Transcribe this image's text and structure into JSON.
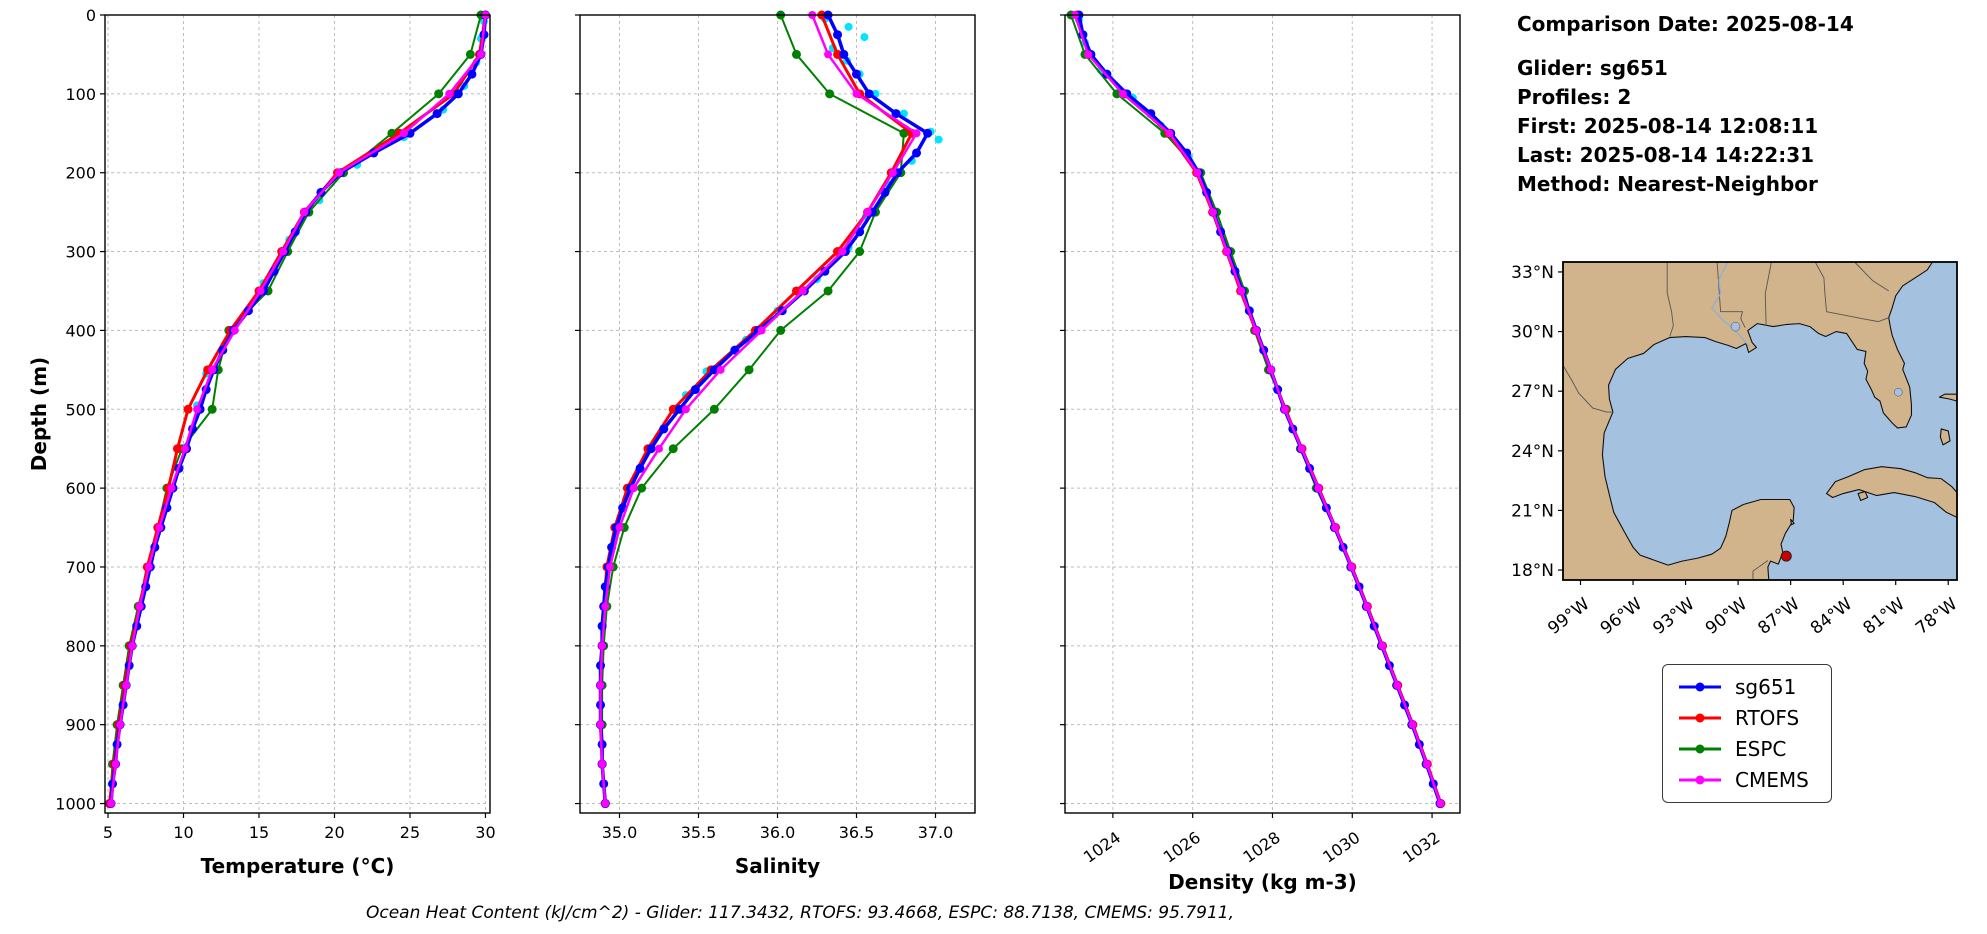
{
  "info_panel": {
    "comparison_date": "Comparison Date: 2025-08-14",
    "glider": "Glider: sg651",
    "profiles": "Profiles: 2",
    "first": "First: 2025-08-14 12:08:11",
    "last": "Last: 2025-08-14 14:22:31",
    "method": "Method: Nearest-Neighbor"
  },
  "caption": "Ocean Heat Content (kJ/cm^2) - Glider: 117.3432,  RTOFS: 93.4668,  ESPC: 88.7138,  CMEMS: 95.7911,",
  "legend": {
    "entries": [
      {
        "label": "sg651",
        "color": "#0000ff"
      },
      {
        "label": "RTOFS",
        "color": "#ff0000"
      },
      {
        "label": "ESPC",
        "color": "#008000"
      },
      {
        "label": "CMEMS",
        "color": "#ff00ff"
      }
    ]
  },
  "map": {
    "extent": {
      "lon": [
        -100,
        -77.5
      ],
      "lat": [
        17.5,
        33.5
      ]
    },
    "lon_ticks": [
      -99,
      -96,
      -93,
      -90,
      -87,
      -84,
      -81,
      -78
    ],
    "lon_tick_labels": [
      "99°W",
      "96°W",
      "93°W",
      "90°W",
      "87°W",
      "84°W",
      "81°W",
      "78°W"
    ],
    "lat_ticks": [
      18,
      21,
      24,
      27,
      30,
      33
    ],
    "lat_tick_labels": [
      "18°N",
      "21°N",
      "24°N",
      "27°N",
      "30°N",
      "33°N"
    ],
    "marker": {
      "lon": -87.25,
      "lat": 18.7,
      "color": "#cc0000"
    },
    "land_color": "#d2b48c",
    "ocean_color": "#a4c2e0"
  },
  "chart_data": [
    {
      "type": "line",
      "xlabel": "Temperature (°C)",
      "ylabel": "Depth (m)",
      "xlim": [
        4.8,
        30.3
      ],
      "ylim": [
        0,
        1012
      ],
      "xticks": [
        5,
        10,
        15,
        20,
        25,
        30
      ],
      "xtick_labels": [
        "5",
        "10",
        "15",
        "20",
        "25",
        "30"
      ],
      "yticks": [
        0,
        100,
        200,
        300,
        400,
        500,
        600,
        700,
        800,
        900,
        1000
      ],
      "ytick_labels": [
        "0",
        "100",
        "200",
        "300",
        "400",
        "500",
        "600",
        "700",
        "800",
        "900",
        "1000"
      ],
      "series": [
        {
          "name": "ESPC",
          "color": "#008000",
          "depths": [
            0,
            50,
            100,
            150,
            200,
            250,
            300,
            350,
            400,
            450,
            500,
            550,
            600,
            650,
            700,
            750,
            800,
            850,
            900,
            950,
            1000
          ],
          "values": [
            29.7,
            29.0,
            26.9,
            23.8,
            20.6,
            18.3,
            16.9,
            15.6,
            13.0,
            12.3,
            11.9,
            9.9,
            8.9,
            8.3,
            7.7,
            7.0,
            6.4,
            6.0,
            5.6,
            5.3,
            5.1
          ]
        },
        {
          "name": "RTOFS",
          "color": "#ff0000",
          "depths": [
            0,
            50,
            100,
            150,
            200,
            250,
            300,
            350,
            400,
            450,
            500,
            550,
            600,
            650,
            700,
            750,
            800,
            850,
            900,
            950,
            1000
          ],
          "values": [
            30.0,
            29.6,
            27.9,
            24.3,
            20.2,
            18.0,
            16.5,
            15.0,
            13.1,
            11.6,
            10.3,
            9.6,
            9.0,
            8.3,
            7.6,
            7.1,
            6.5,
            6.1,
            5.7,
            5.4,
            5.1
          ]
        },
        {
          "name": "sg651",
          "color": "#0000ff",
          "depths": [
            0,
            25,
            50,
            75,
            100,
            125,
            150,
            175,
            200,
            225,
            250,
            275,
            300,
            325,
            350,
            375,
            400,
            425,
            450,
            475,
            500,
            525,
            550,
            575,
            600,
            625,
            650,
            675,
            700,
            725,
            750,
            775,
            800,
            825,
            850,
            875,
            900,
            925,
            950,
            975,
            1000
          ],
          "values": [
            30.0,
            29.9,
            29.7,
            29.1,
            28.2,
            26.8,
            25.0,
            22.6,
            20.4,
            19.1,
            18.1,
            17.4,
            16.7,
            16.0,
            15.3,
            14.3,
            13.3,
            12.6,
            12.0,
            11.5,
            11.1,
            10.6,
            10.2,
            9.7,
            9.3,
            8.9,
            8.5,
            8.1,
            7.8,
            7.5,
            7.2,
            6.9,
            6.6,
            6.4,
            6.2,
            6.0,
            5.8,
            5.6,
            5.5,
            5.3,
            5.2
          ]
        },
        {
          "name": "CMEMS",
          "color": "#ff00ff",
          "depths": [
            0,
            50,
            100,
            150,
            200,
            250,
            300,
            350,
            400,
            450,
            500,
            550,
            600,
            650,
            700,
            750,
            800,
            850,
            900,
            950,
            1000
          ],
          "values": [
            30.0,
            29.7,
            27.6,
            24.6,
            20.3,
            18.0,
            16.6,
            15.1,
            13.4,
            11.9,
            10.9,
            10.1,
            9.2,
            8.4,
            7.7,
            7.1,
            6.6,
            6.2,
            5.8,
            5.5,
            5.2
          ]
        }
      ],
      "scatter": {
        "name": "glider-raw",
        "color": "#00e5ff",
        "points": [
          [
            29.9,
            8
          ],
          [
            29.7,
            30
          ],
          [
            29.4,
            60
          ],
          [
            28.6,
            90
          ],
          [
            27.2,
            120
          ],
          [
            24.6,
            155
          ],
          [
            21.5,
            190
          ],
          [
            19.0,
            235
          ],
          [
            17.0,
            285
          ],
          [
            15.3,
            340
          ],
          [
            13.2,
            400
          ],
          [
            11.5,
            455
          ],
          [
            10.9,
            495
          ]
        ]
      }
    },
    {
      "type": "line",
      "xlabel": "Salinity",
      "xlim": [
        34.75,
        37.25
      ],
      "ylim": [
        0,
        1012
      ],
      "xticks": [
        35.0,
        35.5,
        36.0,
        36.5,
        37.0
      ],
      "xtick_labels": [
        "35.0",
        "35.5",
        "36.0",
        "36.5",
        "37.0"
      ],
      "yticks": [
        0,
        100,
        200,
        300,
        400,
        500,
        600,
        700,
        800,
        900,
        1000
      ],
      "series": [
        {
          "name": "ESPC",
          "color": "#008000",
          "depths": [
            0,
            50,
            100,
            150,
            200,
            250,
            300,
            350,
            400,
            450,
            500,
            550,
            600,
            650,
            700,
            750,
            800,
            850,
            900,
            950,
            1000
          ],
          "values": [
            36.02,
            36.12,
            36.33,
            36.8,
            36.78,
            36.62,
            36.52,
            36.32,
            36.02,
            35.82,
            35.6,
            35.34,
            35.14,
            35.03,
            34.96,
            34.92,
            34.9,
            34.89,
            34.89,
            34.89,
            34.91
          ]
        },
        {
          "name": "RTOFS",
          "color": "#ff0000",
          "depths": [
            0,
            50,
            100,
            150,
            200,
            250,
            300,
            350,
            400,
            450,
            500,
            550,
            600,
            650,
            700,
            750,
            800,
            850,
            900,
            950,
            1000
          ],
          "values": [
            36.28,
            36.38,
            36.52,
            36.85,
            36.72,
            36.57,
            36.38,
            36.12,
            35.86,
            35.58,
            35.34,
            35.18,
            35.05,
            34.97,
            34.92,
            34.9,
            34.89,
            34.88,
            34.88,
            34.89,
            34.91
          ]
        },
        {
          "name": "sg651",
          "color": "#0000ff",
          "depths": [
            0,
            25,
            50,
            75,
            100,
            125,
            150,
            175,
            200,
            225,
            250,
            275,
            300,
            325,
            350,
            375,
            400,
            425,
            450,
            475,
            500,
            525,
            550,
            575,
            600,
            625,
            650,
            675,
            700,
            725,
            750,
            775,
            800,
            825,
            850,
            875,
            900,
            925,
            950,
            975,
            1000
          ],
          "values": [
            36.32,
            36.38,
            36.42,
            36.5,
            36.58,
            36.75,
            36.95,
            36.88,
            36.76,
            36.68,
            36.6,
            36.52,
            36.43,
            36.3,
            36.17,
            36.03,
            35.88,
            35.73,
            35.6,
            35.48,
            35.38,
            35.28,
            35.2,
            35.13,
            35.07,
            35.02,
            34.98,
            34.95,
            34.93,
            34.91,
            34.9,
            34.89,
            34.89,
            34.88,
            34.88,
            34.88,
            34.88,
            34.89,
            34.89,
            34.9,
            34.91
          ]
        },
        {
          "name": "CMEMS",
          "color": "#ff00ff",
          "depths": [
            0,
            50,
            100,
            150,
            200,
            250,
            300,
            350,
            400,
            450,
            500,
            550,
            600,
            650,
            700,
            750,
            800,
            850,
            900,
            950,
            1000
          ],
          "values": [
            36.22,
            36.32,
            36.5,
            36.88,
            36.73,
            36.57,
            36.41,
            36.16,
            35.9,
            35.64,
            35.42,
            35.25,
            35.09,
            35.0,
            34.94,
            34.91,
            34.89,
            34.88,
            34.88,
            34.89,
            34.91
          ]
        }
      ],
      "scatter": {
        "name": "glider-raw",
        "color": "#00e5ff",
        "points": [
          [
            36.3,
            5
          ],
          [
            36.45,
            15
          ],
          [
            36.55,
            28
          ],
          [
            36.35,
            42
          ],
          [
            36.44,
            58
          ],
          [
            36.52,
            75
          ],
          [
            36.62,
            100
          ],
          [
            36.8,
            125
          ],
          [
            36.97,
            148
          ],
          [
            37.02,
            158
          ],
          [
            36.85,
            185
          ],
          [
            36.7,
            215
          ],
          [
            36.56,
            255
          ],
          [
            36.45,
            295
          ],
          [
            36.25,
            335
          ],
          [
            36.0,
            375
          ],
          [
            35.8,
            412
          ],
          [
            35.55,
            452
          ],
          [
            35.42,
            482
          ]
        ]
      }
    },
    {
      "type": "line",
      "xlabel": "Density (kg m-3)",
      "xlim": [
        1022.8,
        1032.7
      ],
      "ylim": [
        0,
        1012
      ],
      "xticks": [
        1024,
        1026,
        1028,
        1030,
        1032
      ],
      "xtick_labels": [
        "1024",
        "1026",
        "1028",
        "1030",
        "1032"
      ],
      "yticks": [
        0,
        100,
        200,
        300,
        400,
        500,
        600,
        700,
        800,
        900,
        1000
      ],
      "series": [
        {
          "name": "ESPC",
          "color": "#008000",
          "depths": [
            0,
            50,
            100,
            150,
            200,
            250,
            300,
            350,
            400,
            450,
            500,
            550,
            600,
            650,
            700,
            750,
            800,
            850,
            900,
            950,
            1000
          ],
          "values": [
            1022.95,
            1023.3,
            1024.1,
            1025.3,
            1026.2,
            1026.6,
            1026.95,
            1027.3,
            1027.55,
            1027.9,
            1028.35,
            1028.7,
            1029.1,
            1029.55,
            1029.96,
            1030.35,
            1030.73,
            1031.11,
            1031.49,
            1031.85,
            1032.2
          ]
        },
        {
          "name": "RTOFS",
          "color": "#ff0000",
          "depths": [
            0,
            50,
            100,
            150,
            200,
            250,
            300,
            350,
            400,
            450,
            500,
            550,
            600,
            650,
            700,
            750,
            800,
            850,
            900,
            950,
            1000
          ],
          "values": [
            1023.1,
            1023.4,
            1024.3,
            1025.4,
            1026.1,
            1026.5,
            1026.85,
            1027.2,
            1027.58,
            1027.95,
            1028.32,
            1028.74,
            1029.16,
            1029.58,
            1029.99,
            1030.38,
            1030.76,
            1031.14,
            1031.52,
            1031.88,
            1032.22
          ]
        },
        {
          "name": "sg651",
          "color": "#0000ff",
          "depths": [
            0,
            25,
            50,
            75,
            100,
            125,
            150,
            175,
            200,
            225,
            250,
            275,
            300,
            325,
            350,
            375,
            400,
            425,
            450,
            475,
            500,
            525,
            550,
            575,
            600,
            625,
            650,
            675,
            700,
            725,
            750,
            775,
            800,
            825,
            850,
            875,
            900,
            925,
            950,
            975,
            1000
          ],
          "values": [
            1023.15,
            1023.25,
            1023.45,
            1023.85,
            1024.35,
            1024.95,
            1025.45,
            1025.85,
            1026.15,
            1026.35,
            1026.52,
            1026.7,
            1026.88,
            1027.06,
            1027.24,
            1027.42,
            1027.6,
            1027.78,
            1027.96,
            1028.13,
            1028.3,
            1028.51,
            1028.72,
            1028.93,
            1029.14,
            1029.35,
            1029.56,
            1029.77,
            1029.97,
            1030.17,
            1030.36,
            1030.55,
            1030.74,
            1030.93,
            1031.12,
            1031.31,
            1031.5,
            1031.68,
            1031.86,
            1032.03,
            1032.2
          ]
        },
        {
          "name": "CMEMS",
          "color": "#ff00ff",
          "depths": [
            0,
            50,
            100,
            150,
            200,
            250,
            300,
            350,
            400,
            450,
            500,
            550,
            600,
            650,
            700,
            750,
            800,
            850,
            900,
            950,
            1000
          ],
          "values": [
            1023.05,
            1023.38,
            1024.25,
            1025.42,
            1026.12,
            1026.51,
            1026.86,
            1027.22,
            1027.59,
            1027.96,
            1028.31,
            1028.73,
            1029.15,
            1029.57,
            1029.98,
            1030.37,
            1030.75,
            1031.13,
            1031.51,
            1031.87,
            1032.21
          ]
        }
      ],
      "scatter": {
        "name": "glider-raw",
        "color": "#00e5ff",
        "points": [
          [
            1023.15,
            6
          ],
          [
            1023.3,
            35
          ],
          [
            1023.7,
            70
          ],
          [
            1024.5,
            105
          ],
          [
            1025.2,
            140
          ],
          [
            1025.9,
            180
          ]
        ]
      }
    }
  ]
}
